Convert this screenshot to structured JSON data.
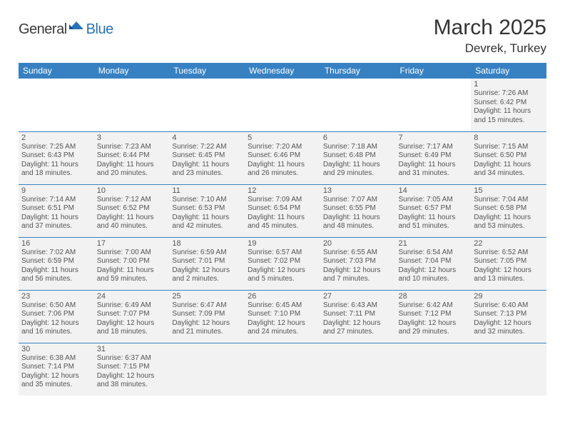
{
  "logo": {
    "general": "General",
    "blue": "Blue"
  },
  "title": "March 2025",
  "location": "Devrek, Turkey",
  "colors": {
    "header_bg": "#3781c2",
    "header_text": "#ffffff",
    "cell_bg": "#f2f2f2",
    "cell_border": "#3781c2",
    "text": "#555555"
  },
  "weekdays": [
    "Sunday",
    "Monday",
    "Tuesday",
    "Wednesday",
    "Thursday",
    "Friday",
    "Saturday"
  ],
  "weeks": [
    [
      null,
      null,
      null,
      null,
      null,
      null,
      {
        "n": "1",
        "sr": "Sunrise: 7:26 AM",
        "ss": "Sunset: 6:42 PM",
        "dl": "Daylight: 11 hours and 15 minutes."
      }
    ],
    [
      {
        "n": "2",
        "sr": "Sunrise: 7:25 AM",
        "ss": "Sunset: 6:43 PM",
        "dl": "Daylight: 11 hours and 18 minutes."
      },
      {
        "n": "3",
        "sr": "Sunrise: 7:23 AM",
        "ss": "Sunset: 6:44 PM",
        "dl": "Daylight: 11 hours and 20 minutes."
      },
      {
        "n": "4",
        "sr": "Sunrise: 7:22 AM",
        "ss": "Sunset: 6:45 PM",
        "dl": "Daylight: 11 hours and 23 minutes."
      },
      {
        "n": "5",
        "sr": "Sunrise: 7:20 AM",
        "ss": "Sunset: 6:46 PM",
        "dl": "Daylight: 11 hours and 26 minutes."
      },
      {
        "n": "6",
        "sr": "Sunrise: 7:18 AM",
        "ss": "Sunset: 6:48 PM",
        "dl": "Daylight: 11 hours and 29 minutes."
      },
      {
        "n": "7",
        "sr": "Sunrise: 7:17 AM",
        "ss": "Sunset: 6:49 PM",
        "dl": "Daylight: 11 hours and 31 minutes."
      },
      {
        "n": "8",
        "sr": "Sunrise: 7:15 AM",
        "ss": "Sunset: 6:50 PM",
        "dl": "Daylight: 11 hours and 34 minutes."
      }
    ],
    [
      {
        "n": "9",
        "sr": "Sunrise: 7:14 AM",
        "ss": "Sunset: 6:51 PM",
        "dl": "Daylight: 11 hours and 37 minutes."
      },
      {
        "n": "10",
        "sr": "Sunrise: 7:12 AM",
        "ss": "Sunset: 6:52 PM",
        "dl": "Daylight: 11 hours and 40 minutes."
      },
      {
        "n": "11",
        "sr": "Sunrise: 7:10 AM",
        "ss": "Sunset: 6:53 PM",
        "dl": "Daylight: 11 hours and 42 minutes."
      },
      {
        "n": "12",
        "sr": "Sunrise: 7:09 AM",
        "ss": "Sunset: 6:54 PM",
        "dl": "Daylight: 11 hours and 45 minutes."
      },
      {
        "n": "13",
        "sr": "Sunrise: 7:07 AM",
        "ss": "Sunset: 6:55 PM",
        "dl": "Daylight: 11 hours and 48 minutes."
      },
      {
        "n": "14",
        "sr": "Sunrise: 7:05 AM",
        "ss": "Sunset: 6:57 PM",
        "dl": "Daylight: 11 hours and 51 minutes."
      },
      {
        "n": "15",
        "sr": "Sunrise: 7:04 AM",
        "ss": "Sunset: 6:58 PM",
        "dl": "Daylight: 11 hours and 53 minutes."
      }
    ],
    [
      {
        "n": "16",
        "sr": "Sunrise: 7:02 AM",
        "ss": "Sunset: 6:59 PM",
        "dl": "Daylight: 11 hours and 56 minutes."
      },
      {
        "n": "17",
        "sr": "Sunrise: 7:00 AM",
        "ss": "Sunset: 7:00 PM",
        "dl": "Daylight: 11 hours and 59 minutes."
      },
      {
        "n": "18",
        "sr": "Sunrise: 6:59 AM",
        "ss": "Sunset: 7:01 PM",
        "dl": "Daylight: 12 hours and 2 minutes."
      },
      {
        "n": "19",
        "sr": "Sunrise: 6:57 AM",
        "ss": "Sunset: 7:02 PM",
        "dl": "Daylight: 12 hours and 5 minutes."
      },
      {
        "n": "20",
        "sr": "Sunrise: 6:55 AM",
        "ss": "Sunset: 7:03 PM",
        "dl": "Daylight: 12 hours and 7 minutes."
      },
      {
        "n": "21",
        "sr": "Sunrise: 6:54 AM",
        "ss": "Sunset: 7:04 PM",
        "dl": "Daylight: 12 hours and 10 minutes."
      },
      {
        "n": "22",
        "sr": "Sunrise: 6:52 AM",
        "ss": "Sunset: 7:05 PM",
        "dl": "Daylight: 12 hours and 13 minutes."
      }
    ],
    [
      {
        "n": "23",
        "sr": "Sunrise: 6:50 AM",
        "ss": "Sunset: 7:06 PM",
        "dl": "Daylight: 12 hours and 16 minutes."
      },
      {
        "n": "24",
        "sr": "Sunrise: 6:49 AM",
        "ss": "Sunset: 7:07 PM",
        "dl": "Daylight: 12 hours and 18 minutes."
      },
      {
        "n": "25",
        "sr": "Sunrise: 6:47 AM",
        "ss": "Sunset: 7:09 PM",
        "dl": "Daylight: 12 hours and 21 minutes."
      },
      {
        "n": "26",
        "sr": "Sunrise: 6:45 AM",
        "ss": "Sunset: 7:10 PM",
        "dl": "Daylight: 12 hours and 24 minutes."
      },
      {
        "n": "27",
        "sr": "Sunrise: 6:43 AM",
        "ss": "Sunset: 7:11 PM",
        "dl": "Daylight: 12 hours and 27 minutes."
      },
      {
        "n": "28",
        "sr": "Sunrise: 6:42 AM",
        "ss": "Sunset: 7:12 PM",
        "dl": "Daylight: 12 hours and 29 minutes."
      },
      {
        "n": "29",
        "sr": "Sunrise: 6:40 AM",
        "ss": "Sunset: 7:13 PM",
        "dl": "Daylight: 12 hours and 32 minutes."
      }
    ],
    [
      {
        "n": "30",
        "sr": "Sunrise: 6:38 AM",
        "ss": "Sunset: 7:14 PM",
        "dl": "Daylight: 12 hours and 35 minutes."
      },
      {
        "n": "31",
        "sr": "Sunrise: 6:37 AM",
        "ss": "Sunset: 7:15 PM",
        "dl": "Daylight: 12 hours and 38 minutes."
      },
      null,
      null,
      null,
      null,
      null
    ]
  ]
}
